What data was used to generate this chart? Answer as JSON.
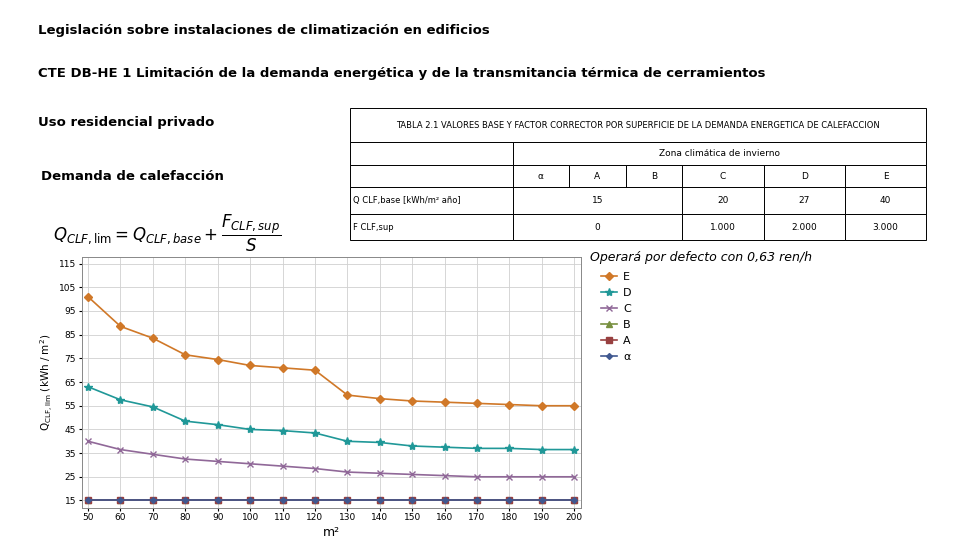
{
  "title1": "Legislación sobre instalaciones de climatización en edificios",
  "title2": "CTE DB-HE 1 Limitación de la demanda energética y de la transmitancia térmica de cerramientos",
  "subtitle": "Uso residencial privado",
  "box_label": "Demanda de calefacción",
  "table_title": "TABLA 2.1 VALORES BASE Y FACTOR CORRECTOR POR SUPERFICIE DE LA DEMANDA ENERGETICA DE CALEFACCION",
  "table_subtitle": "Zona climática de invierno",
  "table_cols": [
    "α",
    "A",
    "B",
    "C",
    "D",
    "E"
  ],
  "note": "Operará por defecto con 0,63 ren/h",
  "x_label": "m²",
  "x_ticks": [
    50,
    60,
    70,
    80,
    90,
    100,
    110,
    120,
    130,
    140,
    150,
    160,
    170,
    180,
    190,
    200
  ],
  "y_ticks": [
    15,
    25,
    35,
    45,
    55,
    65,
    75,
    85,
    95,
    105,
    115
  ],
  "y_min": 12,
  "y_max": 118,
  "series_order": [
    "E",
    "D",
    "C",
    "B",
    "A",
    "α"
  ],
  "series": {
    "E": {
      "color": "#d07828",
      "marker": "D",
      "markersize": 4,
      "values": [
        101.0,
        88.5,
        83.5,
        76.5,
        74.5,
        72.0,
        71.0,
        70.0,
        59.5,
        58.0,
        57.0,
        56.5,
        56.0,
        55.5,
        55.0,
        55.0
      ]
    },
    "D": {
      "color": "#209898",
      "marker": "*",
      "markersize": 6,
      "values": [
        63.0,
        57.5,
        54.5,
        48.5,
        47.0,
        45.0,
        44.5,
        43.5,
        40.0,
        39.5,
        38.0,
        37.5,
        37.0,
        37.0,
        36.5,
        36.5
      ]
    },
    "C": {
      "color": "#906898",
      "marker": "x",
      "markersize": 5,
      "values": [
        40.0,
        36.5,
        34.5,
        32.5,
        31.5,
        30.5,
        29.5,
        28.5,
        27.0,
        26.5,
        26.0,
        25.5,
        25.0,
        25.0,
        25.0,
        25.0
      ]
    },
    "B": {
      "color": "#789040",
      "marker": "^",
      "markersize": 4,
      "values": [
        15.0,
        15.0,
        15.0,
        15.0,
        15.0,
        15.0,
        15.0,
        15.0,
        15.0,
        15.0,
        15.0,
        15.0,
        15.0,
        15.0,
        15.0,
        15.0
      ]
    },
    "A": {
      "color": "#984040",
      "marker": "s",
      "markersize": 4,
      "values": [
        15.0,
        15.0,
        15.0,
        15.0,
        15.0,
        15.0,
        15.0,
        15.0,
        15.0,
        15.0,
        15.0,
        15.0,
        15.0,
        15.0,
        15.0,
        15.0
      ]
    },
    "α": {
      "color": "#405890",
      "marker": "D",
      "markersize": 3,
      "values": [
        15.0,
        15.0,
        15.0,
        15.0,
        15.0,
        15.0,
        15.0,
        15.0,
        15.0,
        15.0,
        15.0,
        15.0,
        15.0,
        15.0,
        15.0,
        15.0
      ]
    }
  },
  "bg_color": "#ffffff"
}
